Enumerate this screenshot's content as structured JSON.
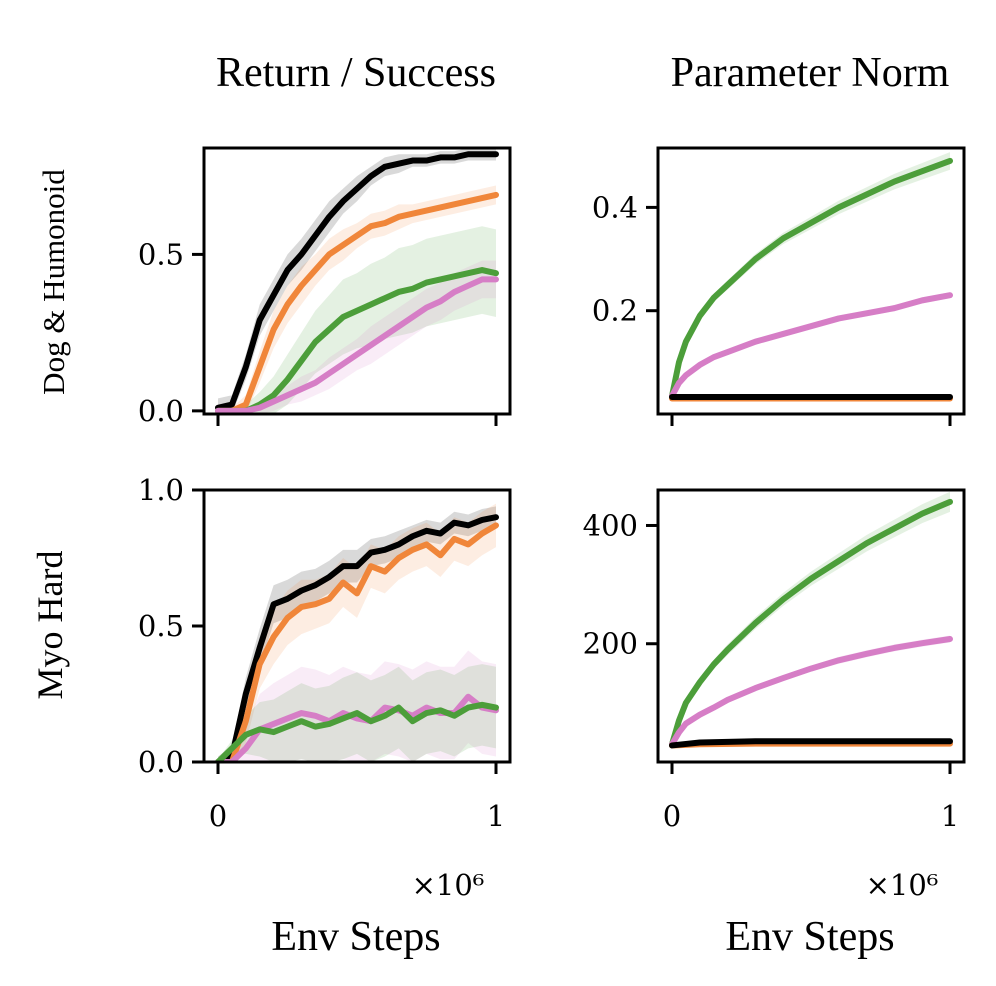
{
  "chart_data": [
    {
      "type": "line",
      "panel": "top-left",
      "title": "Return / Success",
      "ylabel": "Dog & Humonoid",
      "xlabel": "",
      "xlim": [
        0,
        1
      ],
      "ylim": [
        -0.01,
        0.84
      ],
      "yticks": [
        0.0,
        0.5
      ],
      "ytick_labels": [
        "0.0",
        "0.5"
      ],
      "x_multiplier": "",
      "series": [
        {
          "name": "black",
          "color": "#000000",
          "x": [
            0,
            0.05,
            0.1,
            0.15,
            0.2,
            0.25,
            0.3,
            0.35,
            0.4,
            0.45,
            0.5,
            0.55,
            0.6,
            0.65,
            0.7,
            0.75,
            0.8,
            0.85,
            0.9,
            0.95,
            1.0
          ],
          "y": [
            0.01,
            0.02,
            0.14,
            0.29,
            0.37,
            0.45,
            0.5,
            0.56,
            0.62,
            0.67,
            0.71,
            0.75,
            0.78,
            0.79,
            0.8,
            0.8,
            0.81,
            0.81,
            0.82,
            0.82,
            0.82
          ],
          "band": [
            0.03,
            0.03,
            0.04,
            0.05,
            0.05,
            0.05,
            0.05,
            0.05,
            0.05,
            0.04,
            0.04,
            0.03,
            0.03,
            0.03,
            0.02,
            0.02,
            0.02,
            0.02,
            0.02,
            0.02,
            0.02
          ]
        },
        {
          "name": "orange",
          "color": "#f0863a",
          "x": [
            0,
            0.05,
            0.1,
            0.15,
            0.2,
            0.25,
            0.3,
            0.35,
            0.4,
            0.45,
            0.5,
            0.55,
            0.6,
            0.65,
            0.7,
            0.75,
            0.8,
            0.85,
            0.9,
            0.95,
            1.0
          ],
          "y": [
            0.0,
            0.0,
            0.02,
            0.14,
            0.26,
            0.34,
            0.4,
            0.45,
            0.5,
            0.53,
            0.56,
            0.59,
            0.6,
            0.62,
            0.63,
            0.64,
            0.65,
            0.66,
            0.67,
            0.68,
            0.69
          ],
          "band": [
            0.01,
            0.01,
            0.03,
            0.05,
            0.06,
            0.06,
            0.06,
            0.05,
            0.05,
            0.05,
            0.04,
            0.04,
            0.04,
            0.04,
            0.03,
            0.03,
            0.03,
            0.03,
            0.03,
            0.03,
            0.03
          ]
        },
        {
          "name": "green",
          "color": "#4c9e3a",
          "x": [
            0,
            0.05,
            0.1,
            0.15,
            0.2,
            0.25,
            0.3,
            0.35,
            0.4,
            0.45,
            0.5,
            0.55,
            0.6,
            0.65,
            0.7,
            0.75,
            0.8,
            0.85,
            0.9,
            0.95,
            1.0
          ],
          "y": [
            0.0,
            0.0,
            0.0,
            0.02,
            0.05,
            0.1,
            0.16,
            0.22,
            0.26,
            0.3,
            0.32,
            0.34,
            0.36,
            0.38,
            0.39,
            0.41,
            0.42,
            0.43,
            0.44,
            0.45,
            0.44
          ],
          "band": [
            0.01,
            0.01,
            0.02,
            0.04,
            0.06,
            0.08,
            0.09,
            0.1,
            0.11,
            0.12,
            0.12,
            0.13,
            0.13,
            0.14,
            0.14,
            0.14,
            0.14,
            0.14,
            0.14,
            0.14,
            0.14
          ]
        },
        {
          "name": "pink",
          "color": "#d67ec6",
          "x": [
            0,
            0.05,
            0.1,
            0.15,
            0.2,
            0.25,
            0.3,
            0.35,
            0.4,
            0.45,
            0.5,
            0.55,
            0.6,
            0.65,
            0.7,
            0.75,
            0.8,
            0.85,
            0.9,
            0.95,
            1.0
          ],
          "y": [
            0.0,
            0.0,
            0.0,
            0.01,
            0.03,
            0.05,
            0.07,
            0.09,
            0.12,
            0.15,
            0.18,
            0.21,
            0.24,
            0.27,
            0.3,
            0.33,
            0.35,
            0.38,
            0.4,
            0.42,
            0.42
          ],
          "band": [
            0.01,
            0.01,
            0.01,
            0.02,
            0.03,
            0.03,
            0.04,
            0.04,
            0.05,
            0.05,
            0.05,
            0.06,
            0.06,
            0.06,
            0.06,
            0.06,
            0.06,
            0.06,
            0.06,
            0.06,
            0.06
          ]
        }
      ]
    },
    {
      "type": "line",
      "panel": "top-right",
      "title": "Parameter Norm",
      "ylabel": "",
      "xlabel": "",
      "xlim": [
        0,
        1
      ],
      "ylim": [
        0.0,
        0.515
      ],
      "yticks": [
        0.2,
        0.4
      ],
      "ytick_labels": [
        "0.2",
        "0.4"
      ],
      "x_multiplier": "",
      "series": [
        {
          "name": "green",
          "color": "#4c9e3a",
          "x": [
            0,
            0.025,
            0.05,
            0.1,
            0.15,
            0.2,
            0.3,
            0.4,
            0.5,
            0.6,
            0.7,
            0.8,
            0.9,
            1.0
          ],
          "y": [
            0.035,
            0.1,
            0.14,
            0.19,
            0.225,
            0.25,
            0.3,
            0.34,
            0.37,
            0.4,
            0.425,
            0.45,
            0.47,
            0.49
          ],
          "band": [
            0.003,
            0.005,
            0.006,
            0.007,
            0.008,
            0.009,
            0.01,
            0.011,
            0.012,
            0.013,
            0.014,
            0.015,
            0.016,
            0.017
          ]
        },
        {
          "name": "pink",
          "color": "#d67ec6",
          "x": [
            0,
            0.025,
            0.05,
            0.1,
            0.15,
            0.2,
            0.3,
            0.4,
            0.5,
            0.6,
            0.7,
            0.8,
            0.9,
            1.0
          ],
          "y": [
            0.035,
            0.06,
            0.075,
            0.095,
            0.11,
            0.12,
            0.14,
            0.155,
            0.17,
            0.185,
            0.195,
            0.205,
            0.22,
            0.23
          ],
          "band": [
            0.002,
            0.003,
            0.003,
            0.004,
            0.004,
            0.004,
            0.005,
            0.005,
            0.005,
            0.006,
            0.006,
            0.006,
            0.006,
            0.006
          ]
        },
        {
          "name": "orange",
          "color": "#f0863a",
          "x": [
            0,
            1.0
          ],
          "y": [
            0.03,
            0.03
          ],
          "band": [
            0,
            0
          ]
        },
        {
          "name": "black",
          "color": "#000000",
          "x": [
            0,
            0.1,
            0.5,
            1.0
          ],
          "y": [
            0.033,
            0.033,
            0.033,
            0.033
          ],
          "band": [
            0,
            0,
            0,
            0
          ]
        }
      ]
    },
    {
      "type": "line",
      "panel": "bottom-left",
      "title": "",
      "ylabel": "Myo Hard",
      "xlabel": "Env Steps",
      "xlim": [
        0,
        1
      ],
      "ylim": [
        0.0,
        1.0
      ],
      "yticks": [
        0.0,
        0.5,
        1.0
      ],
      "ytick_labels": [
        "0.0",
        "0.5",
        "1.0"
      ],
      "xticks": [
        0,
        1
      ],
      "xtick_labels": [
        "0",
        "1"
      ],
      "x_multiplier": "×10⁶",
      "series": [
        {
          "name": "black",
          "color": "#000000",
          "x": [
            0,
            0.05,
            0.1,
            0.15,
            0.2,
            0.25,
            0.3,
            0.35,
            0.4,
            0.45,
            0.5,
            0.55,
            0.6,
            0.65,
            0.7,
            0.75,
            0.8,
            0.85,
            0.9,
            0.95,
            1.0
          ],
          "y": [
            0.0,
            0.02,
            0.25,
            0.42,
            0.58,
            0.6,
            0.63,
            0.65,
            0.68,
            0.72,
            0.72,
            0.77,
            0.78,
            0.8,
            0.83,
            0.85,
            0.84,
            0.88,
            0.87,
            0.89,
            0.9
          ],
          "band": [
            0.02,
            0.04,
            0.06,
            0.07,
            0.07,
            0.07,
            0.07,
            0.06,
            0.06,
            0.06,
            0.06,
            0.05,
            0.05,
            0.05,
            0.04,
            0.04,
            0.04,
            0.04,
            0.04,
            0.04,
            0.04
          ]
        },
        {
          "name": "orange",
          "color": "#f0863a",
          "x": [
            0,
            0.05,
            0.1,
            0.15,
            0.2,
            0.25,
            0.3,
            0.35,
            0.4,
            0.45,
            0.5,
            0.55,
            0.6,
            0.65,
            0.7,
            0.75,
            0.8,
            0.85,
            0.9,
            0.95,
            1.0
          ],
          "y": [
            0.0,
            0.0,
            0.15,
            0.36,
            0.46,
            0.53,
            0.57,
            0.58,
            0.6,
            0.66,
            0.62,
            0.72,
            0.7,
            0.75,
            0.78,
            0.8,
            0.76,
            0.82,
            0.8,
            0.84,
            0.87
          ],
          "band": [
            0.01,
            0.02,
            0.08,
            0.09,
            0.1,
            0.1,
            0.1,
            0.09,
            0.09,
            0.09,
            0.09,
            0.08,
            0.08,
            0.08,
            0.08,
            0.08,
            0.08,
            0.08,
            0.08,
            0.08,
            0.08
          ]
        },
        {
          "name": "pink",
          "color": "#d67ec6",
          "x": [
            0,
            0.05,
            0.1,
            0.15,
            0.2,
            0.25,
            0.3,
            0.35,
            0.4,
            0.45,
            0.5,
            0.55,
            0.6,
            0.65,
            0.7,
            0.75,
            0.8,
            0.85,
            0.9,
            0.95,
            1.0
          ],
          "y": [
            0.0,
            0.0,
            0.05,
            0.12,
            0.14,
            0.16,
            0.18,
            0.17,
            0.15,
            0.18,
            0.16,
            0.15,
            0.2,
            0.19,
            0.17,
            0.2,
            0.18,
            0.18,
            0.24,
            0.2,
            0.19
          ],
          "band": [
            0.01,
            0.02,
            0.08,
            0.13,
            0.15,
            0.16,
            0.17,
            0.17,
            0.17,
            0.17,
            0.17,
            0.17,
            0.17,
            0.17,
            0.17,
            0.17,
            0.17,
            0.17,
            0.17,
            0.17,
            0.17
          ]
        },
        {
          "name": "green",
          "color": "#4c9e3a",
          "x": [
            0,
            0.05,
            0.1,
            0.15,
            0.2,
            0.25,
            0.3,
            0.35,
            0.4,
            0.45,
            0.5,
            0.55,
            0.6,
            0.65,
            0.7,
            0.75,
            0.8,
            0.85,
            0.9,
            0.95,
            1.0
          ],
          "y": [
            0.0,
            0.05,
            0.1,
            0.12,
            0.11,
            0.13,
            0.15,
            0.13,
            0.14,
            0.16,
            0.18,
            0.15,
            0.17,
            0.2,
            0.15,
            0.18,
            0.19,
            0.17,
            0.2,
            0.21,
            0.2
          ],
          "band": [
            0.01,
            0.03,
            0.07,
            0.1,
            0.12,
            0.13,
            0.14,
            0.14,
            0.14,
            0.15,
            0.15,
            0.15,
            0.15,
            0.15,
            0.15,
            0.15,
            0.15,
            0.15,
            0.15,
            0.15,
            0.15
          ]
        }
      ]
    },
    {
      "type": "line",
      "panel": "bottom-right",
      "title": "",
      "ylabel": "",
      "xlabel": "Env Steps",
      "xlim": [
        0,
        1
      ],
      "ylim": [
        0,
        460
      ],
      "yticks": [
        200,
        400
      ],
      "ytick_labels": [
        "200",
        "400"
      ],
      "xticks": [
        0,
        1
      ],
      "xtick_labels": [
        "0",
        "1"
      ],
      "x_multiplier": "×10⁶",
      "series": [
        {
          "name": "green",
          "color": "#4c9e3a",
          "x": [
            0,
            0.025,
            0.05,
            0.1,
            0.15,
            0.2,
            0.3,
            0.4,
            0.5,
            0.6,
            0.7,
            0.8,
            0.9,
            1.0
          ],
          "y": [
            30,
            70,
            100,
            135,
            165,
            190,
            235,
            275,
            310,
            340,
            370,
            395,
            420,
            440
          ],
          "band": [
            3,
            5,
            6,
            7,
            8,
            9,
            10,
            11,
            12,
            13,
            14,
            15,
            16,
            17
          ]
        },
        {
          "name": "pink",
          "color": "#d67ec6",
          "x": [
            0,
            0.025,
            0.05,
            0.1,
            0.15,
            0.2,
            0.3,
            0.4,
            0.5,
            0.6,
            0.7,
            0.8,
            0.9,
            1.0
          ],
          "y": [
            30,
            50,
            65,
            80,
            92,
            105,
            125,
            142,
            158,
            172,
            183,
            193,
            201,
            208
          ],
          "band": [
            2,
            3,
            3,
            4,
            4,
            4,
            5,
            5,
            5,
            6,
            6,
            6,
            6,
            6
          ]
        },
        {
          "name": "orange",
          "color": "#f0863a",
          "x": [
            0,
            0.1,
            0.3,
            0.6,
            1.0
          ],
          "y": [
            28,
            30,
            31,
            31,
            31
          ],
          "band": [
            0,
            0,
            0,
            0,
            0
          ]
        },
        {
          "name": "black",
          "color": "#000000",
          "x": [
            0,
            0.1,
            0.3,
            0.6,
            1.0
          ],
          "y": [
            28,
            33,
            35,
            35,
            35
          ],
          "band": [
            0,
            0,
            0,
            0,
            0
          ]
        }
      ]
    }
  ]
}
